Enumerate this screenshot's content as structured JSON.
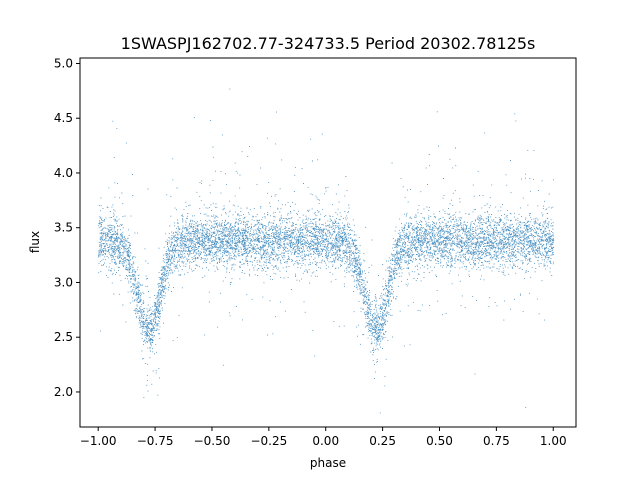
{
  "chart_data": {
    "type": "scatter",
    "title": "1SWASPJ162702.77-324733.5 Period 20302.78125s",
    "xlabel": "phase",
    "ylabel": "flux",
    "xlim": [
      -1.08,
      1.1
    ],
    "ylim": [
      1.68,
      5.05
    ],
    "x_ticks": [
      -1.0,
      -0.75,
      -0.5,
      -0.25,
      0.0,
      0.25,
      0.5,
      0.75,
      1.0
    ],
    "x_tick_labels": [
      "−1.00",
      "−0.75",
      "−0.50",
      "−0.25",
      "0.00",
      "0.25",
      "0.50",
      "0.75",
      "1.00"
    ],
    "y_ticks": [
      2.0,
      2.5,
      3.0,
      3.5,
      4.0,
      4.5,
      5.0
    ],
    "y_tick_labels": [
      "2.0",
      "2.5",
      "3.0",
      "3.5",
      "4.0",
      "4.5",
      "5.0"
    ],
    "grid": false,
    "marker_color": "#1f77b4",
    "series": [
      {
        "phase_range": [
          -1.0,
          1.0
        ],
        "baseline_flux": 3.38,
        "baseline_scatter": 0.12,
        "minima": [
          {
            "phase": -0.78,
            "flux": 2.55
          },
          {
            "phase": 0.22,
            "flux": 2.55
          }
        ],
        "eclipse_width_phase": 0.1,
        "n_points": 9000
      }
    ]
  }
}
